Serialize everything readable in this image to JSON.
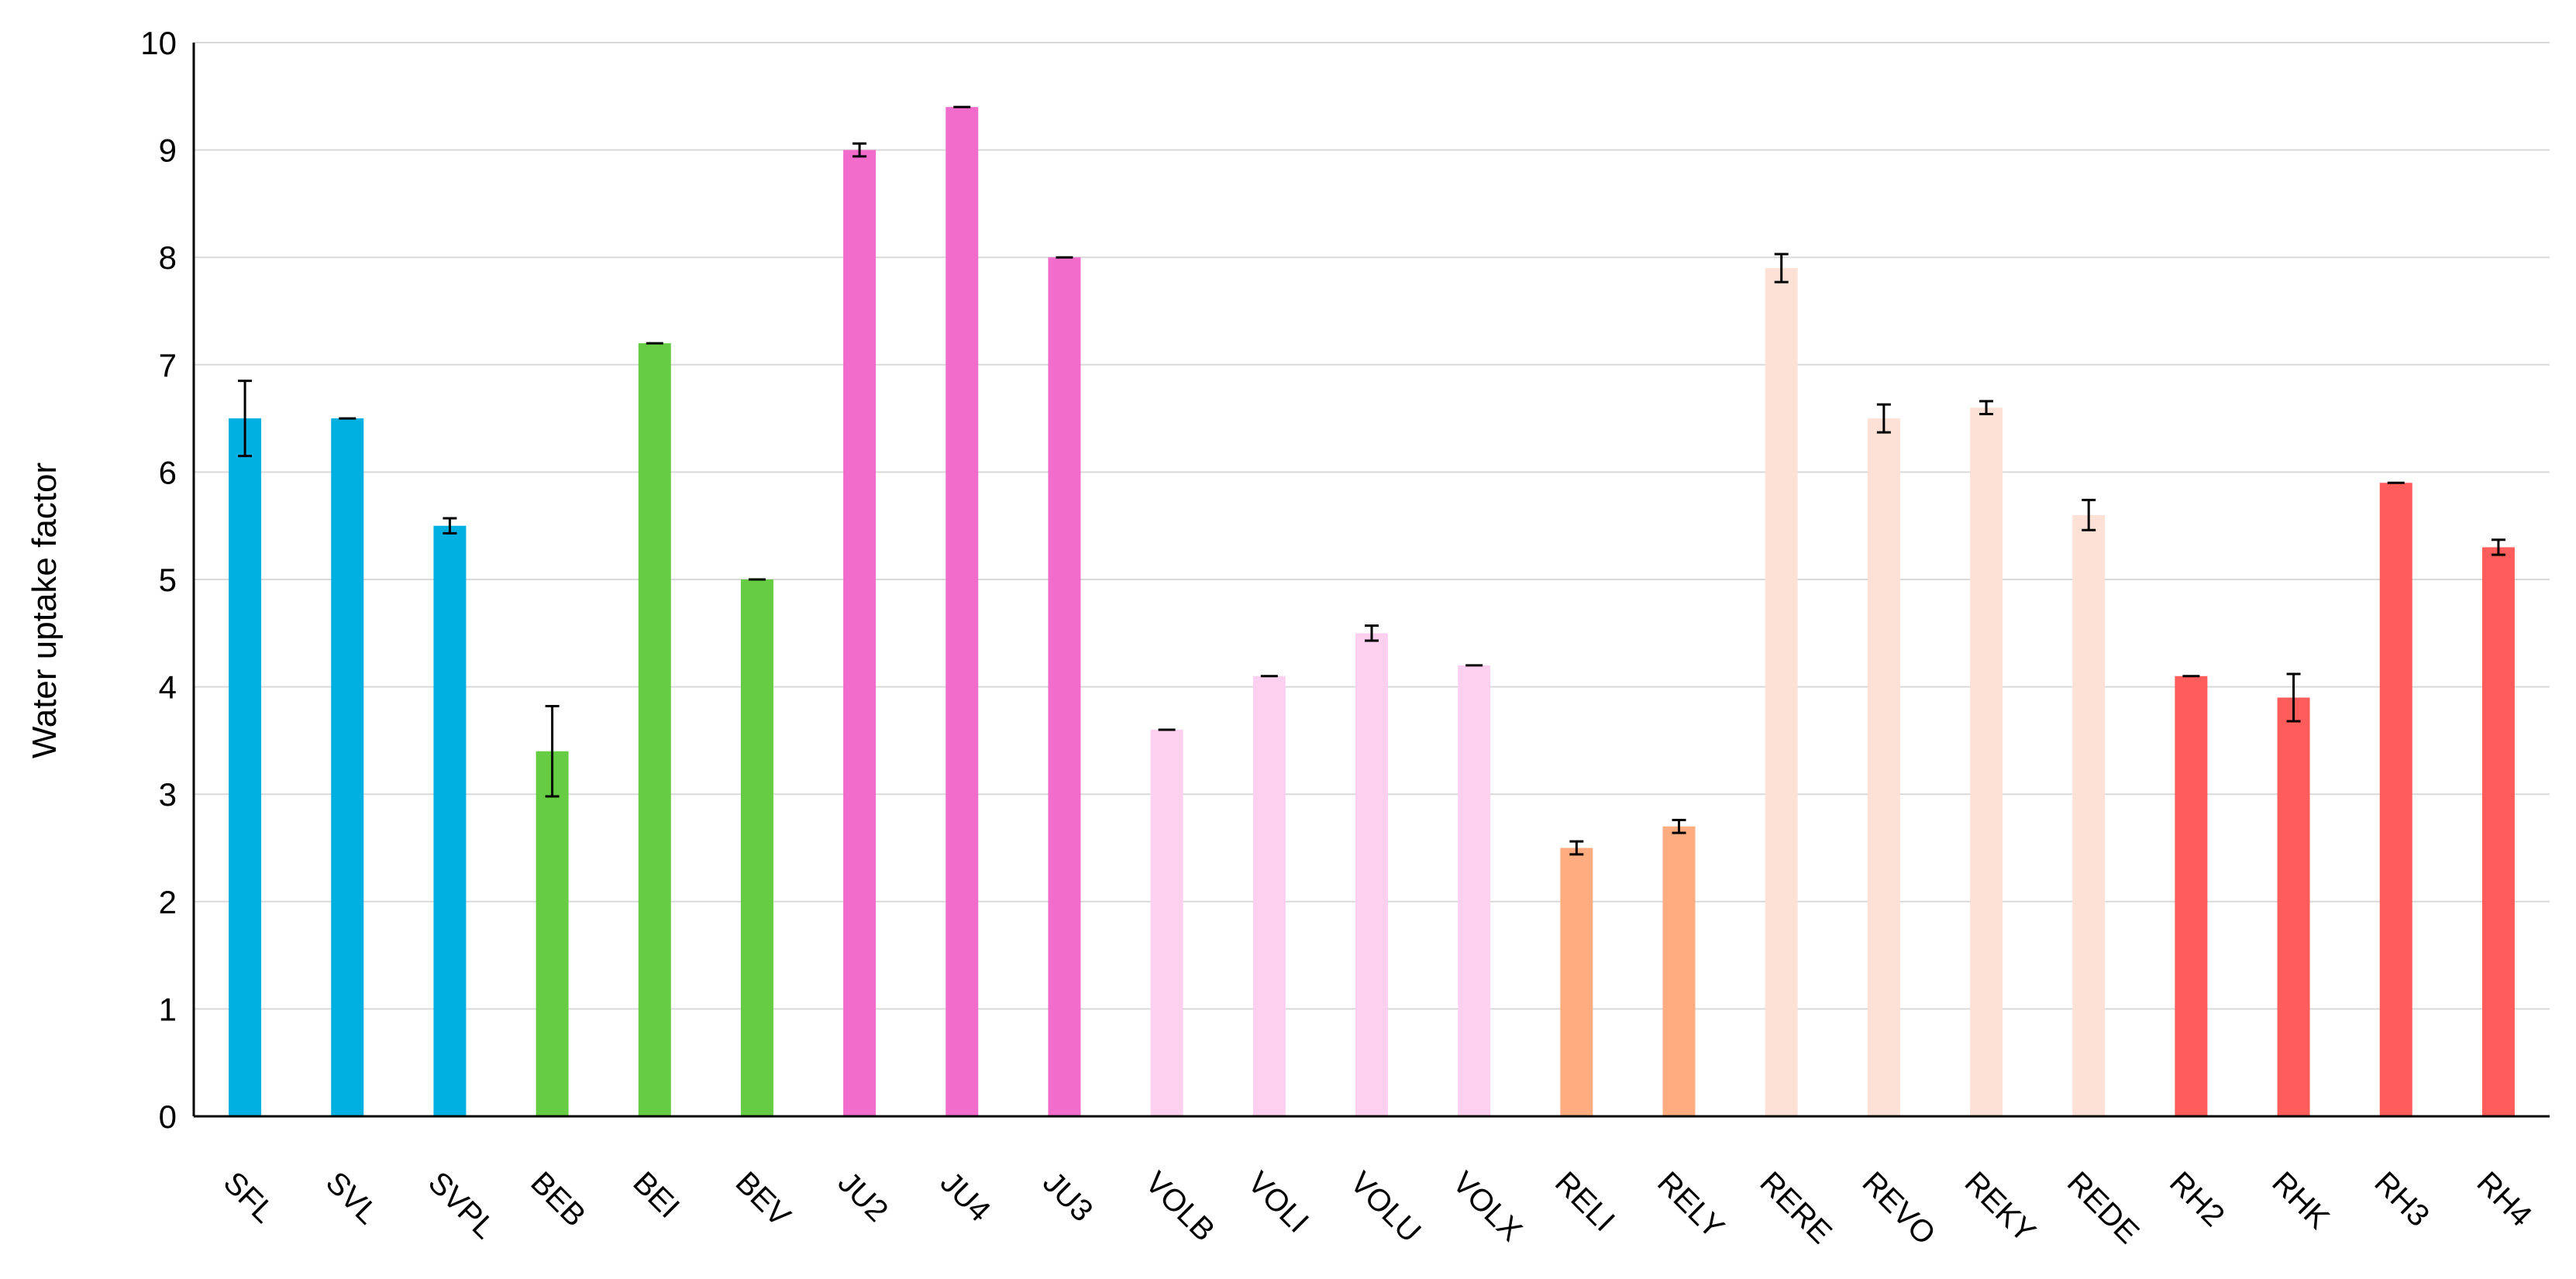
{
  "chart_data": {
    "type": "bar",
    "title": "",
    "xlabel": "",
    "ylabel": "Water uptake factor",
    "ylim": [
      0,
      10
    ],
    "yticks": [
      0,
      1,
      2,
      3,
      4,
      5,
      6,
      7,
      8,
      9,
      10
    ],
    "grid": true,
    "legend": "none",
    "categories": [
      "SFL",
      "SVL",
      "SVPL",
      "BEB",
      "BEI",
      "BEV",
      "JU2",
      "JU4",
      "JU3",
      "VOLB",
      "VOLI",
      "VOLU",
      "VOLX",
      "RELI",
      "RELY",
      "RERE",
      "REVO",
      "REKY",
      "REDE",
      "RH2",
      "RHK",
      "RH3",
      "RH4"
    ],
    "values": [
      6.5,
      6.5,
      5.5,
      3.4,
      7.2,
      5.0,
      9.0,
      9.4,
      8.0,
      3.6,
      4.1,
      4.5,
      4.2,
      2.5,
      2.7,
      7.9,
      6.5,
      6.6,
      5.6,
      4.1,
      3.9,
      5.9,
      5.3
    ],
    "errors": [
      0.35,
      0.0,
      0.07,
      0.42,
      0.0,
      0.0,
      0.06,
      0.0,
      0.0,
      0.0,
      0.0,
      0.07,
      0.0,
      0.06,
      0.06,
      0.13,
      0.13,
      0.06,
      0.14,
      0.0,
      0.22,
      0.0,
      0.07
    ],
    "colors": [
      "#00b0e0",
      "#00b0e0",
      "#00b0e0",
      "#66cc44",
      "#66cc44",
      "#66cc44",
      "#f26ccc",
      "#f26ccc",
      "#f26ccc",
      "#fdd0f0",
      "#fdd0f0",
      "#fdd0f0",
      "#fdd0f0",
      "#ffad80",
      "#ffad80",
      "#fde1d6",
      "#fde1d6",
      "#fde1d6",
      "#fde1d6",
      "#ff5c5c",
      "#ff5c5c",
      "#ff5c5c",
      "#ff5c5c"
    ]
  }
}
